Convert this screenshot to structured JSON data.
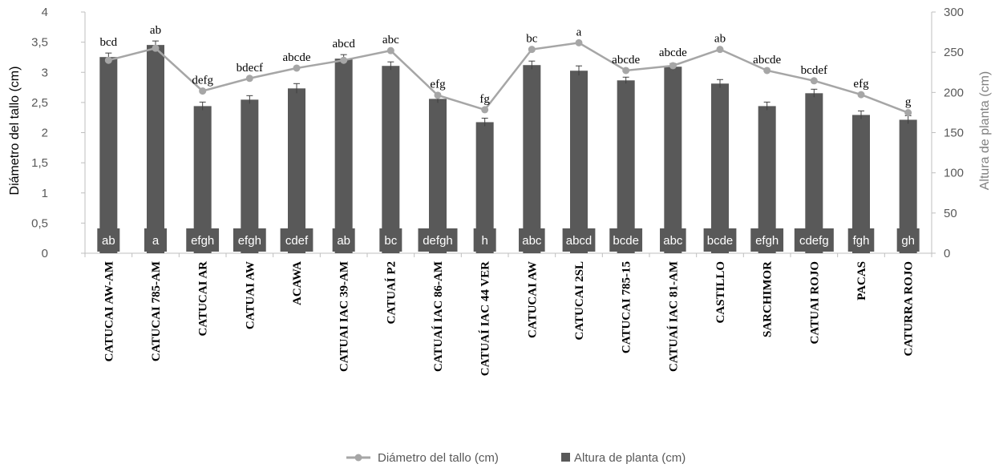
{
  "chart_data": {
    "type": "bar",
    "categories": [
      "CATUCAI AW-AM",
      "CATUCAI 785-AM",
      "CATUCAI AR",
      "CATUAI AW",
      "ACAWA",
      "CATUAI IAC 39-AM",
      "CATUAÍ P2",
      "CATUAÍ IAC 86-AM",
      "CATUAÍ IAC 44 VER",
      "CATUCAI AW",
      "CATUCAI 2SL",
      "CATUCAI 785-15",
      "CATUAÍ IAC 81-AM",
      "CASTILLO",
      "SARCHIMOR",
      "CATUAI ROJO",
      "PACAS",
      "CATURRA ROJO"
    ],
    "series": [
      {
        "name": "Diámetro del tallo (cm)",
        "type": "line",
        "axis": "left",
        "color": "#a6a6a6",
        "values": [
          3.2,
          3.4,
          2.69,
          2.9,
          3.07,
          3.2,
          3.36,
          2.62,
          2.38,
          3.38,
          3.49,
          3.03,
          3.11,
          3.38,
          3.03,
          2.86,
          2.63,
          2.33
        ],
        "labels": [
          "bcd",
          "ab",
          "defg",
          "bdecf",
          "abcde",
          "abcd",
          "abc",
          "efg",
          "fg",
          "bc",
          "a",
          "abcde",
          "abcde",
          "ab",
          "abcde",
          "bcdef",
          "efg",
          "g"
        ]
      },
      {
        "name": "Altura de planta (cm)",
        "type": "bar",
        "axis": "right",
        "color": "#595959",
        "values": [
          244,
          259,
          183,
          191,
          205,
          242,
          233,
          192,
          163,
          234,
          227,
          215,
          232,
          211,
          183,
          199,
          172,
          166
        ],
        "errors": [
          5,
          5,
          5,
          5,
          6,
          5,
          5,
          5,
          5,
          5,
          6,
          4,
          4,
          5,
          5,
          5,
          5,
          5
        ],
        "labels": [
          "ab",
          "a",
          "efgh",
          "efgh",
          "cdef",
          "ab",
          "bc",
          "defgh",
          "h",
          "abc",
          "abcd",
          "bcde",
          "abc",
          "bcde",
          "efgh",
          "cdefg",
          "fgh",
          "gh"
        ]
      }
    ],
    "ylabel": "Diámetro del tallo (cm)",
    "ylim": [
      0,
      4
    ],
    "yticks": [
      "0",
      "0,5",
      "1",
      "1,5",
      "2",
      "2,5",
      "3",
      "3,5",
      "4"
    ],
    "y2label": "Altura de planta (cm)",
    "y2lim": [
      0,
      300
    ],
    "y2ticks": [
      "0",
      "50",
      "100",
      "150",
      "200",
      "250",
      "300"
    ],
    "xlabel": "",
    "title": "",
    "grid": false,
    "legend_position": "bottom"
  }
}
